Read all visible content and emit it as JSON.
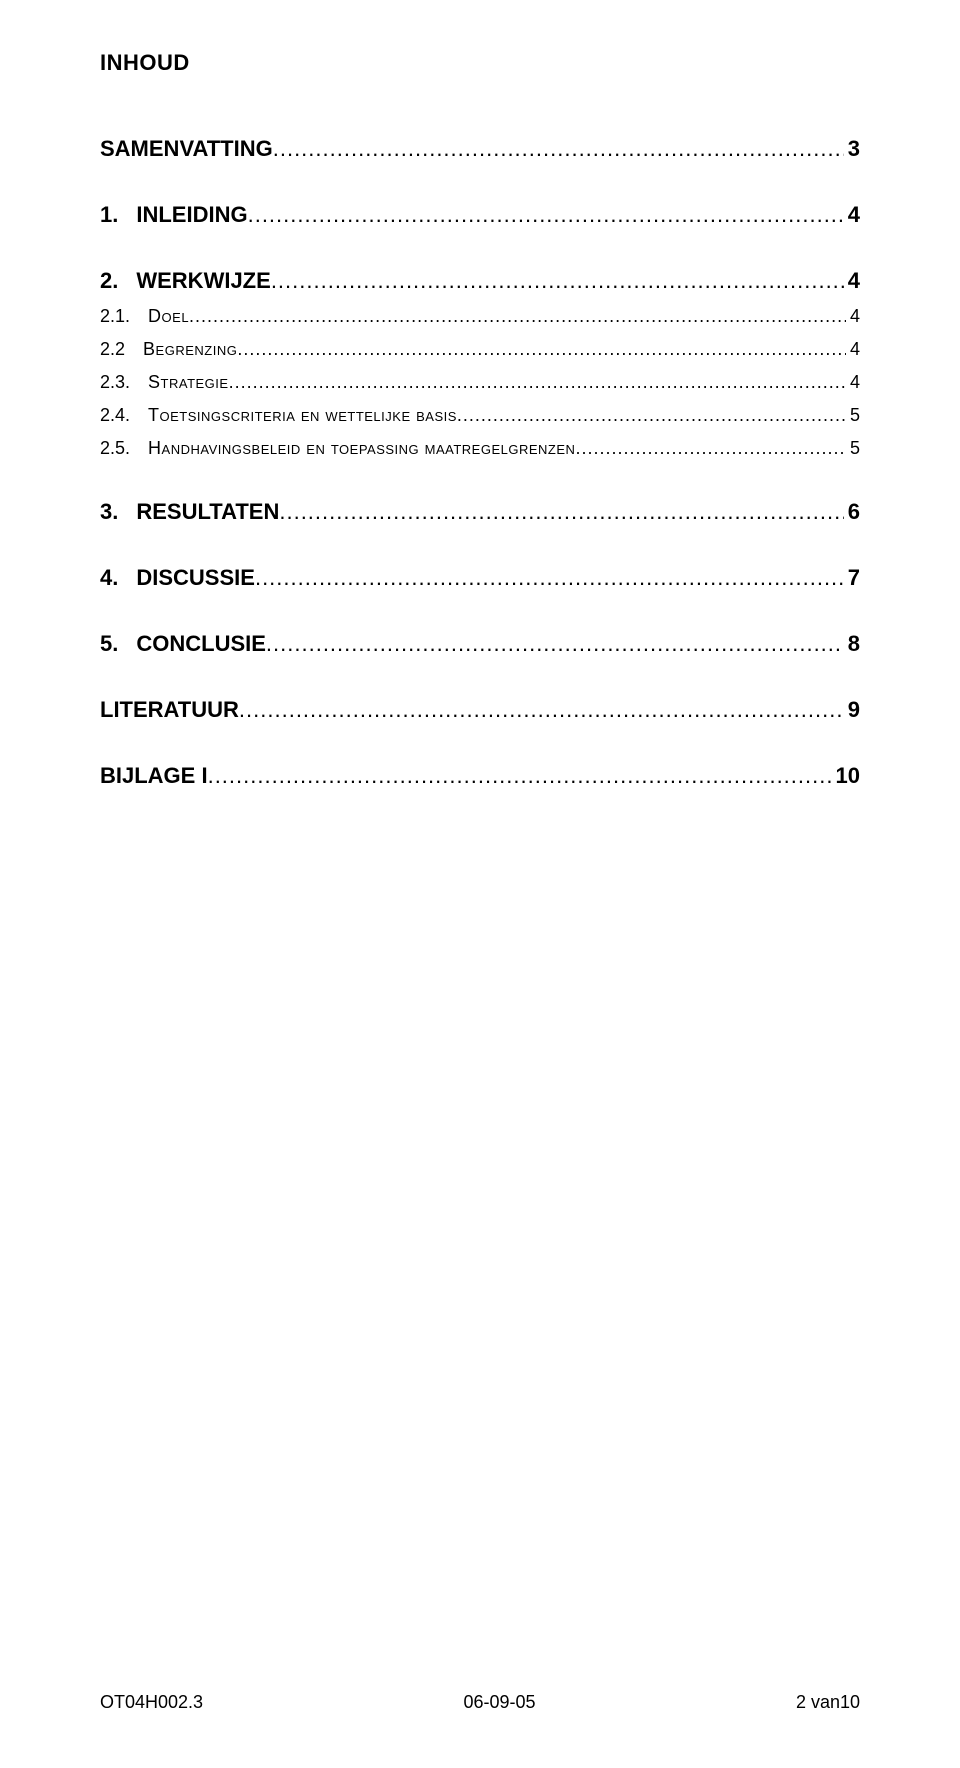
{
  "heading": "INHOUD",
  "toc": [
    {
      "level": 0,
      "num": "",
      "title": "SAMENVATTING",
      "smallcaps": false,
      "page": "3"
    },
    {
      "level": 1,
      "num": "1.",
      "title": "INLEIDING",
      "smallcaps": false,
      "page": "4"
    },
    {
      "level": 1,
      "num": "2.",
      "title": "WERKWIJZE",
      "smallcaps": false,
      "page": "4"
    },
    {
      "level": 2,
      "num": "2.1.",
      "title": "Doel",
      "smallcaps": true,
      "page": "4"
    },
    {
      "level": 2,
      "num": "2.2",
      "title": "Begrenzing",
      "smallcaps": true,
      "page": "4"
    },
    {
      "level": 2,
      "num": "2.3.",
      "title": "Strategie",
      "smallcaps": true,
      "page": "4"
    },
    {
      "level": 2,
      "num": "2.4.",
      "title": "Toetsingscriteria en wettelijke basis",
      "smallcaps": true,
      "page": "5"
    },
    {
      "level": 2,
      "num": "2.5.",
      "title": "Handhavingsbeleid en toepassing maatregelgrenzen",
      "smallcaps": true,
      "page": "5"
    },
    {
      "level": 1,
      "num": "3.",
      "title": "RESULTATEN",
      "smallcaps": false,
      "page": "6"
    },
    {
      "level": 1,
      "num": "4.",
      "title": "DISCUSSIE",
      "smallcaps": false,
      "page": "7"
    },
    {
      "level": 1,
      "num": "5.",
      "title": "CONCLUSIE",
      "smallcaps": false,
      "page": "8"
    },
    {
      "level": 0,
      "num": "",
      "title": "LITERATUUR",
      "smallcaps": false,
      "page": "9"
    },
    {
      "level": 0,
      "num": "",
      "title": "BIJLAGE  I",
      "smallcaps": false,
      "page": "10"
    }
  ],
  "leader_str": "....................................................................................................................................................................................................................................................................",
  "footer": {
    "left": "OT04H002.3",
    "center": "06-09-05",
    "right": "2 van10"
  },
  "colors": {
    "background": "#ffffff",
    "text": "#000000"
  },
  "font_sizes": {
    "heading": 22,
    "level0": 22,
    "level1": 22,
    "level2": 18,
    "footer": 18
  }
}
